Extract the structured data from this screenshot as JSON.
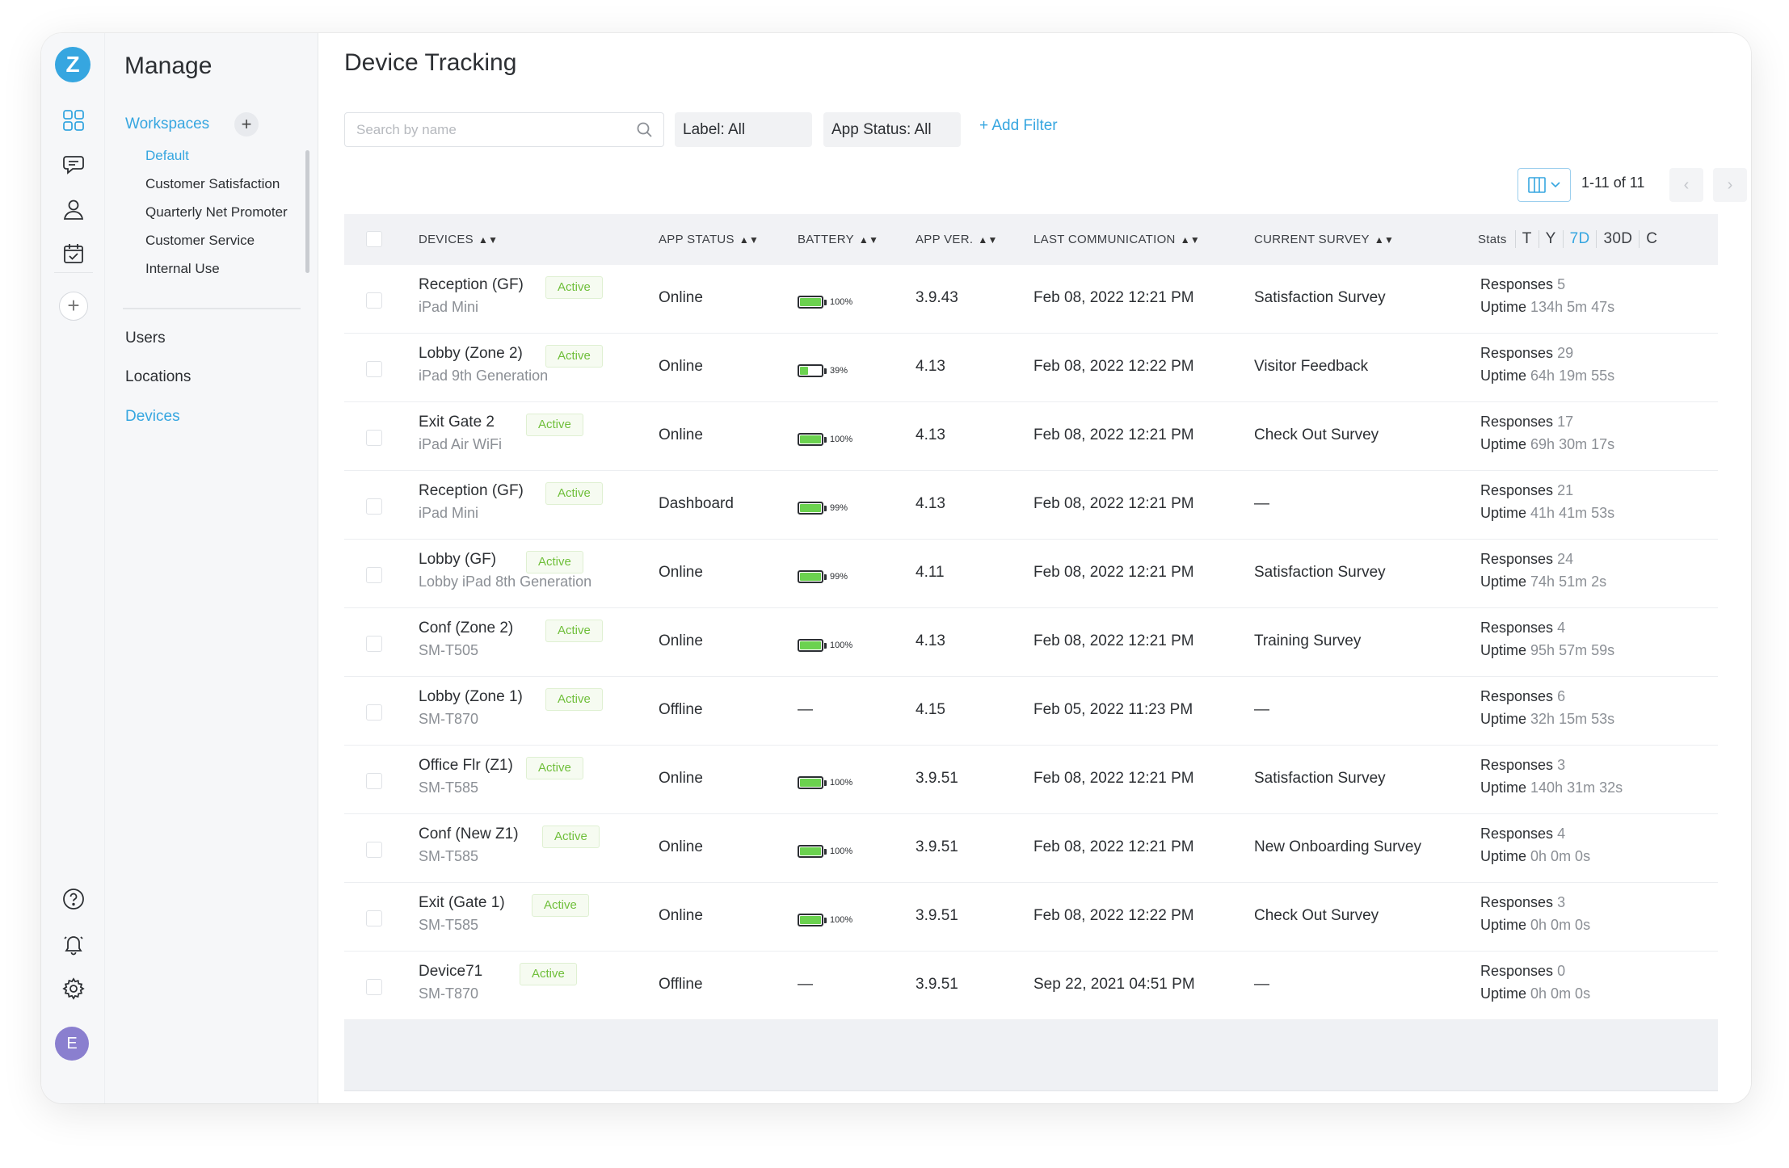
{
  "nav": {
    "logo_letter": "Z",
    "manage_title": "Manage",
    "workspaces_label": "Workspaces",
    "workspaces": [
      {
        "label": "Default"
      },
      {
        "label": "Customer Satisfaction"
      },
      {
        "label": "Quarterly Net Promoter"
      },
      {
        "label": "Customer Service"
      },
      {
        "label": "Internal Use"
      }
    ],
    "links": [
      {
        "label": "Users"
      },
      {
        "label": "Locations"
      },
      {
        "label": "Devices"
      }
    ],
    "avatar_initial": "E",
    "icons": [
      "grid-icon",
      "chat-icon",
      "user-icon",
      "calendar-check-icon",
      "add-icon",
      "help-icon",
      "bell-icon",
      "gear-icon"
    ]
  },
  "page": {
    "title": "Device Tracking",
    "search_placeholder": "Search by name",
    "filters": {
      "label": "Label: All",
      "app_status": "App Status: All",
      "add_filter": "+ Add Filter"
    },
    "pager": {
      "text": "1-11 of 11",
      "prev": "‹",
      "next": "›"
    }
  },
  "table": {
    "headers": {
      "devices": "DEVICES",
      "app_status": "APP STATUS",
      "battery": "BATTERY",
      "app_ver": "APP VER.",
      "last_comm": "LAST COMMUNICATION",
      "survey": "CURRENT SURVEY",
      "stats": "Stats"
    },
    "stats_tabs": [
      "T",
      "Y",
      "7D",
      "30D",
      "C"
    ],
    "stats_active": "7D",
    "responses_label": "Responses",
    "uptime_label": "Uptime",
    "rows": [
      {
        "name": "Reception (GF)",
        "badge": "Active",
        "model": "iPad Mini",
        "app_status": "Online",
        "battery": "100%",
        "battery_level": 100,
        "app_ver": "3.9.43",
        "last_comm": "Feb 08, 2022 12:21 PM",
        "survey": "Satisfaction Survey",
        "responses": "5",
        "uptime": "134h 5m 47s"
      },
      {
        "name": "Lobby (Zone 2)",
        "badge": "Active",
        "model": "iPad 9th Generation",
        "app_status": "Online",
        "battery": "39%",
        "battery_level": 39,
        "app_ver": "4.13",
        "last_comm": "Feb 08, 2022 12:22 PM",
        "survey": "Visitor Feedback",
        "responses": "29",
        "uptime": "64h 19m 55s"
      },
      {
        "name": "Exit Gate 2",
        "badge": "Active",
        "model": "iPad Air WiFi",
        "app_status": "Online",
        "battery": "100%",
        "battery_level": 100,
        "app_ver": "4.13",
        "last_comm": "Feb 08, 2022 12:21 PM",
        "survey": "Check Out Survey",
        "responses": "17",
        "uptime": "69h 30m 17s"
      },
      {
        "name": "Reception (GF)",
        "badge": "Active",
        "model": "iPad Mini",
        "app_status": "Dashboard",
        "battery": "99%",
        "battery_level": 99,
        "app_ver": "4.13",
        "last_comm": "Feb 08, 2022 12:21 PM",
        "survey": "—",
        "responses": "21",
        "uptime": "41h 41m 53s"
      },
      {
        "name": "Lobby (GF)",
        "badge": "Active",
        "model": "Lobby iPad 8th Generation",
        "app_status": "Online",
        "battery": "99%",
        "battery_level": 99,
        "app_ver": "4.11",
        "last_comm": "Feb 08, 2022 12:21 PM",
        "survey": "Satisfaction Survey",
        "responses": "24",
        "uptime": "74h 51m 2s"
      },
      {
        "name": "Conf (Zone 2)",
        "badge": "Active",
        "model": "SM-T505",
        "app_status": "Online",
        "battery": "100%",
        "battery_level": 100,
        "app_ver": "4.13",
        "last_comm": "Feb 08, 2022 12:21 PM",
        "survey": "Training Survey",
        "responses": "4",
        "uptime": "95h 57m 59s"
      },
      {
        "name": "Lobby (Zone 1)",
        "badge": "Active",
        "model": "SM-T870",
        "app_status": "Offline",
        "battery": "—",
        "battery_level": null,
        "app_ver": "4.15",
        "last_comm": "Feb 05, 2022 11:23 PM",
        "survey": "—",
        "responses": "6",
        "uptime": "32h 15m 53s"
      },
      {
        "name": "Office Flr (Z1)",
        "badge": "Active",
        "model": "SM-T585",
        "app_status": "Online",
        "battery": "100%",
        "battery_level": 100,
        "app_ver": "3.9.51",
        "last_comm": "Feb 08, 2022 12:21 PM",
        "survey": "Satisfaction Survey",
        "responses": "3",
        "uptime": "140h 31m 32s"
      },
      {
        "name": "Conf (New Z1)",
        "badge": "Active",
        "model": "SM-T585",
        "app_status": "Online",
        "battery": "100%",
        "battery_level": 100,
        "app_ver": "3.9.51",
        "last_comm": "Feb 08, 2022 12:21 PM",
        "survey": "New Onboarding Survey",
        "responses": "4",
        "uptime": "0h 0m 0s"
      },
      {
        "name": "Exit (Gate 1)",
        "badge": "Active",
        "model": "SM-T585",
        "app_status": "Online",
        "battery": "100%",
        "battery_level": 100,
        "app_ver": "3.9.51",
        "last_comm": "Feb 08, 2022 12:22 PM",
        "survey": "Check Out Survey",
        "responses": "3",
        "uptime": "0h 0m 0s"
      },
      {
        "name": "Device71",
        "badge": "Active",
        "model": "SM-T870",
        "app_status": "Offline",
        "battery": "—",
        "battery_level": null,
        "app_ver": "3.9.51",
        "last_comm": "Sep 22, 2021 04:51 PM",
        "survey": "—",
        "responses": "0",
        "uptime": "0h 0m 0s"
      }
    ]
  },
  "colors": {
    "accent": "#36a6e0",
    "active_badge": "#6fbf3a",
    "battery_fill": "#6bd24f"
  }
}
